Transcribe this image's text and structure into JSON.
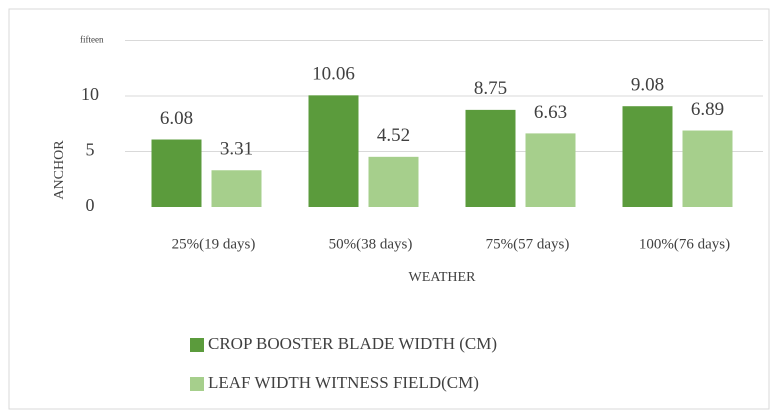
{
  "chart_data": {
    "type": "bar",
    "categories": [
      "25%(19 days)",
      "50%(38 days)",
      "75%(57 days)",
      "100%(76 days)"
    ],
    "series": [
      {
        "name": "CROP BOOSTER BLADE WIDTH (CM)",
        "color": "#5b9b3c",
        "values": [
          6.08,
          10.06,
          8.75,
          9.08
        ]
      },
      {
        "name": "LEAF WIDTH WITNESS FIELD(CM)",
        "color": "#a6cf8c",
        "values": [
          3.31,
          4.52,
          6.63,
          6.89
        ]
      }
    ],
    "y_label": "ANCHOR",
    "x_label": "WEATHER",
    "ylim": [
      0,
      15
    ],
    "yticks": [
      0,
      5,
      10,
      {
        "value": 15,
        "label": "fifteen"
      }
    ],
    "grid": true,
    "legend": "bottom"
  }
}
